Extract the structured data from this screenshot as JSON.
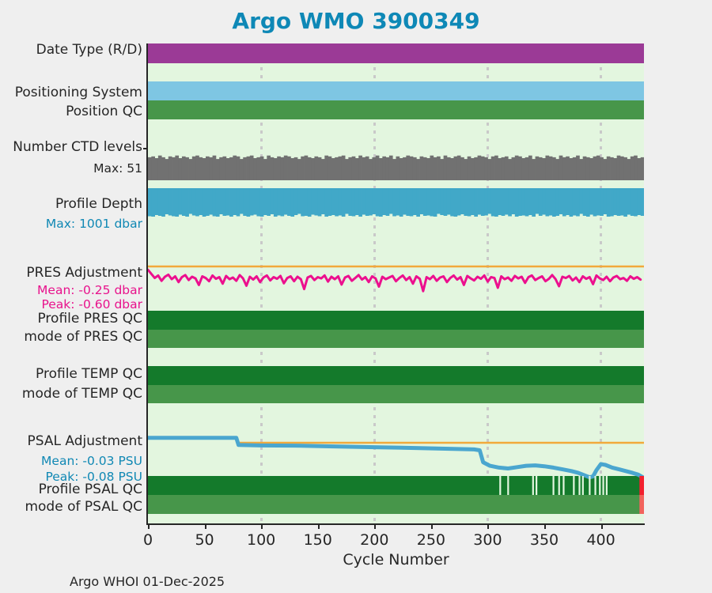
{
  "title": {
    "text": "Argo WMO 3900349",
    "color": "#0e88b6"
  },
  "footer": {
    "text": "Argo WHOI 01-Dec-2025"
  },
  "rows": {
    "date_type": {
      "label": "Date Type (R/D)",
      "color": "#9b3a96"
    },
    "positioning_system": {
      "label": "Positioning System",
      "color": "#7ec6e3"
    },
    "position_qc": {
      "label": "Position QC",
      "color": "#47964a"
    },
    "number_ctd_levels": {
      "label": "Number CTD levels",
      "max_label": "Max: 51",
      "color": "#717171"
    },
    "profile_depth": {
      "label": "Profile Depth",
      "max_label": "Max: 1001 dbar",
      "color": "#41a8c8",
      "label_color": "#1088b4"
    },
    "pres_adjustment": {
      "label": "PRES Adjustment",
      "mean_label": "Mean: -0.25 dbar",
      "peak_label": "Peak: -0.60 dbar",
      "color": "#ec108e",
      "label_color": "#e8128c"
    },
    "profile_pres_qc": {
      "label": "Profile PRES QC",
      "color": "#147a2b"
    },
    "mode_pres_qc": {
      "label": "mode of PRES QC",
      "color": "#47964a"
    },
    "profile_temp_qc": {
      "label": "Profile TEMP QC",
      "color": "#147a2b"
    },
    "mode_temp_qc": {
      "label": "mode of TEMP QC",
      "color": "#47964a"
    },
    "psal_adjustment": {
      "label": "PSAL Adjustment",
      "mean_label": "Mean: -0.03 PSU",
      "peak_label": "Peak: -0.08 PSU",
      "color": "#4aa6cf",
      "label_color": "#1088b4"
    },
    "profile_psal_qc": {
      "label": "Profile PSAL QC",
      "color": "#147a2b"
    },
    "mode_psal_qc": {
      "label": "mode of PSAL QC",
      "color": "#47964a"
    }
  },
  "chart_data": {
    "type": "multi-row status timeline: full-span category bars + two line series",
    "x_axis": {
      "label": "Cycle Number",
      "ticks": [
        0,
        50,
        100,
        150,
        200,
        250,
        300,
        350,
        400
      ],
      "max": 438,
      "gridlines": [
        100,
        200,
        300,
        400
      ]
    },
    "colors": {
      "plot_bg": "#e3f6df",
      "zero_line": "#f2a93b",
      "grid": "#c9c9c9",
      "bad": "#f3202e",
      "bad_mode": "#f2635c",
      "axis": "#262626"
    },
    "pres_series": {
      "unit": "dbar",
      "mean": -0.25,
      "peak": -0.6,
      "cycle_step": 3,
      "values": [
        -0.08,
        -0.18,
        -0.28,
        -0.22,
        -0.35,
        -0.25,
        -0.2,
        -0.31,
        -0.24,
        -0.38,
        -0.26,
        -0.21,
        -0.33,
        -0.25,
        -0.29,
        -0.45,
        -0.24,
        -0.28,
        -0.36,
        -0.22,
        -0.3,
        -0.26,
        -0.42,
        -0.23,
        -0.31,
        -0.27,
        -0.35,
        -0.21,
        -0.29,
        -0.47,
        -0.25,
        -0.32,
        -0.24,
        -0.38,
        -0.27,
        -0.22,
        -0.34,
        -0.26,
        -0.3,
        -0.23,
        -0.41,
        -0.28,
        -0.24,
        -0.36,
        -0.25,
        -0.31,
        -0.55,
        -0.27,
        -0.23,
        -0.33,
        -0.26,
        -0.29,
        -0.22,
        -0.37,
        -0.25,
        -0.31,
        -0.24,
        -0.44,
        -0.27,
        -0.23,
        -0.35,
        -0.28,
        -0.21,
        -0.32,
        -0.26,
        -0.38,
        -0.24,
        -0.29,
        -0.49,
        -0.25,
        -0.31,
        -0.27,
        -0.23,
        -0.36,
        -0.28,
        -0.22,
        -0.33,
        -0.26,
        -0.42,
        -0.24,
        -0.3,
        -0.6,
        -0.26,
        -0.31,
        -0.23,
        -0.35,
        -0.27,
        -0.24,
        -0.38,
        -0.28,
        -0.22,
        -0.32,
        -0.26,
        -0.45,
        -0.23,
        -0.29,
        -0.34,
        -0.25,
        -0.3,
        -0.22,
        -0.37,
        -0.26,
        -0.28,
        -0.52,
        -0.24,
        -0.31,
        -0.27,
        -0.35,
        -0.23,
        -0.29,
        -0.25,
        -0.4,
        -0.26,
        -0.22,
        -0.33,
        -0.28,
        -0.24,
        -0.36,
        -0.3,
        -0.21,
        -0.31,
        -0.48,
        -0.25,
        -0.28,
        -0.23,
        -0.34,
        -0.27,
        -0.38,
        -0.24,
        -0.3,
        -0.26,
        -0.43,
        -0.22,
        -0.29,
        -0.33,
        -0.25,
        -0.36,
        -0.27,
        -0.23,
        -0.31,
        -0.28,
        -0.35,
        -0.24,
        -0.3,
        -0.26,
        -0.32
      ]
    },
    "psal_series": {
      "unit": "PSU",
      "mean": -0.03,
      "peak": -0.08,
      "zero_line_from_cycle": 79,
      "points": [
        [
          0,
          0.011
        ],
        [
          78,
          0.011
        ],
        [
          80,
          -0.005
        ],
        [
          100,
          -0.006
        ],
        [
          130,
          -0.0065
        ],
        [
          160,
          -0.008
        ],
        [
          200,
          -0.01
        ],
        [
          240,
          -0.012
        ],
        [
          270,
          -0.014
        ],
        [
          288,
          -0.015
        ],
        [
          293,
          -0.017
        ],
        [
          296,
          -0.044
        ],
        [
          302,
          -0.052
        ],
        [
          310,
          -0.056
        ],
        [
          318,
          -0.058
        ],
        [
          326,
          -0.055
        ],
        [
          334,
          -0.052
        ],
        [
          342,
          -0.051
        ],
        [
          350,
          -0.053
        ],
        [
          358,
          -0.056
        ],
        [
          366,
          -0.06
        ],
        [
          374,
          -0.064
        ],
        [
          380,
          -0.068
        ],
        [
          386,
          -0.074
        ],
        [
          390,
          -0.078
        ],
        [
          393,
          -0.076
        ],
        [
          396,
          -0.062
        ],
        [
          400,
          -0.048
        ],
        [
          404,
          -0.05
        ],
        [
          410,
          -0.056
        ],
        [
          416,
          -0.06
        ],
        [
          422,
          -0.064
        ],
        [
          428,
          -0.068
        ],
        [
          433,
          -0.072
        ],
        [
          437,
          -0.078
        ]
      ]
    },
    "n_ctd_levels": {
      "max": 51,
      "values": [
        49,
        50,
        48,
        51,
        49,
        47,
        50,
        49,
        51,
        48,
        50,
        49,
        47,
        50,
        51,
        49,
        48,
        50,
        49,
        51,
        47,
        49,
        50,
        48,
        49,
        51,
        50,
        47,
        49,
        50,
        51,
        48,
        49,
        50,
        47,
        51,
        49,
        48,
        50,
        49,
        51,
        50,
        48,
        49,
        47,
        50,
        51,
        49,
        48,
        50,
        49,
        47,
        51,
        50,
        48,
        49,
        50,
        51,
        47,
        49,
        50,
        48,
        51,
        49,
        50,
        47,
        49,
        51,
        48,
        50,
        49,
        51,
        47,
        50,
        48,
        49,
        51,
        50,
        49,
        47,
        50,
        49,
        48,
        51,
        49,
        50,
        47,
        51,
        49,
        48,
        50,
        51,
        49,
        47,
        50,
        48,
        49,
        51,
        50,
        49,
        47,
        50,
        51,
        48,
        49,
        50,
        47,
        49,
        51,
        50,
        48,
        49,
        51,
        47,
        50,
        49,
        48,
        51,
        50,
        49,
        47,
        51,
        49,
        50,
        48,
        49,
        51,
        47,
        50,
        49,
        48,
        50,
        51,
        49,
        47,
        50,
        49,
        48,
        51,
        50,
        49,
        47,
        50,
        51,
        48,
        49
      ]
    },
    "profile_depth_dbar": {
      "max": 1001,
      "values": [
        996,
        1001,
        981,
        991,
        1001,
        971,
        986,
        996,
        1001,
        976,
        991,
        1001,
        966,
        986,
        996,
        981,
        1001,
        991,
        976,
        996,
        1001,
        971,
        991,
        986,
        1001,
        981,
        996,
        966,
        991,
        1001,
        986,
        976,
        996,
        1001,
        981,
        991,
        971,
        1001,
        986,
        996,
        976,
        991,
        1001,
        981,
        966,
        996,
        991,
        1001,
        976,
        986,
        996,
        971,
        1001,
        991,
        981,
        996,
        986,
        1001,
        966,
        991,
        996,
        981,
        1001,
        976,
        991,
        986,
        971,
        996,
        1001,
        981,
        991,
        966,
        996,
        986,
        1001,
        976,
        991,
        996,
        981,
        1001,
        971,
        991,
        986,
        996,
        1001,
        966,
        981,
        991,
        976,
        996,
        1001,
        986,
        971,
        991,
        996,
        981,
        1001,
        976,
        991,
        986,
        966,
        996,
        1001,
        981,
        991,
        976,
        996,
        971,
        1001,
        991,
        986,
        996,
        981,
        1001,
        966,
        991,
        976,
        996,
        986,
        1001,
        991,
        971,
        996,
        981,
        1001,
        986,
        996,
        966,
        991,
        1001,
        976,
        996,
        986,
        991,
        971,
        1001,
        996,
        981,
        991,
        986,
        1001,
        976,
        991,
        996,
        981,
        991
      ]
    },
    "psal_qc_flag_cycles": [
      311,
      318,
      340,
      343,
      358,
      363,
      367,
      376,
      381,
      384,
      390,
      395,
      399,
      402,
      405
    ],
    "psal_qc_bad_range": {
      "from": 434,
      "to": 438
    }
  }
}
